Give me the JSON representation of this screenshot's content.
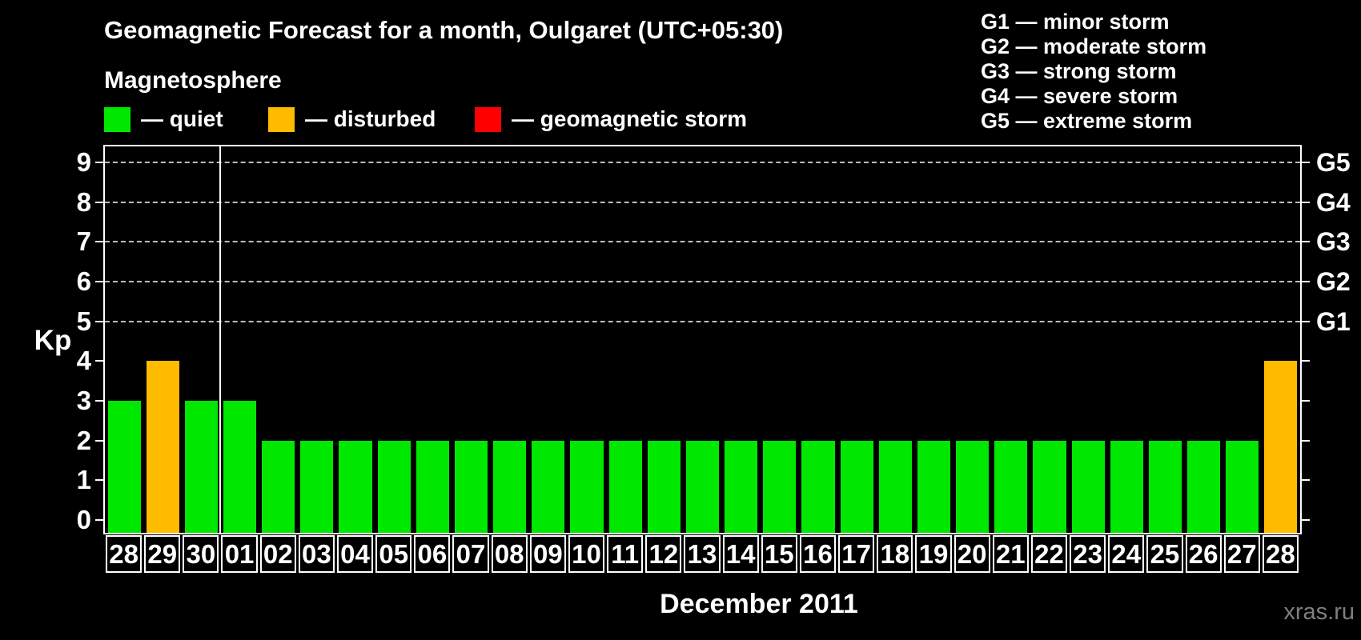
{
  "title": "Geomagnetic Forecast for a month, Oulgaret (UTC+05:30)",
  "subtitle": "Magnetosphere",
  "watermark": "xras.ru",
  "legend": [
    {
      "key": "quiet",
      "label": "— quiet",
      "color": "#00E800"
    },
    {
      "key": "disturbed",
      "label": "— disturbed",
      "color": "#FFBB00"
    },
    {
      "key": "storm",
      "label": "— geomagnetic storm",
      "color": "#FF0000"
    }
  ],
  "g_legend": [
    "G1 — minor storm",
    "G2 — moderate storm",
    "G3 — strong storm",
    "G4 — severe storm",
    "G5 — extreme storm"
  ],
  "chart_data": {
    "type": "bar",
    "title": "Geomagnetic Forecast for a month, Oulgaret (UTC+05:30)",
    "xlabel": "December 2011",
    "ylabel": "Kp",
    "ylim": [
      0,
      9
    ],
    "yticks": [
      0,
      1,
      2,
      3,
      4,
      5,
      6,
      7,
      8,
      9
    ],
    "gridlines_at": [
      5,
      6,
      7,
      8,
      9
    ],
    "grid_style": "dashed horizontal",
    "legend_position": "top-left",
    "right_axis": [
      {
        "kp": 5,
        "label": "G1"
      },
      {
        "kp": 6,
        "label": "G2"
      },
      {
        "kp": 7,
        "label": "G3"
      },
      {
        "kp": 8,
        "label": "G4"
      },
      {
        "kp": 9,
        "label": "G5"
      }
    ],
    "categories": [
      "28",
      "29",
      "30",
      "01",
      "02",
      "03",
      "04",
      "05",
      "06",
      "07",
      "08",
      "09",
      "10",
      "11",
      "12",
      "13",
      "14",
      "15",
      "16",
      "17",
      "18",
      "19",
      "20",
      "21",
      "22",
      "23",
      "24",
      "25",
      "26",
      "27",
      "28"
    ],
    "values": [
      3,
      4,
      3,
      3,
      2,
      2,
      2,
      2,
      2,
      2,
      2,
      2,
      2,
      2,
      2,
      2,
      2,
      2,
      2,
      2,
      2,
      2,
      2,
      2,
      2,
      2,
      2,
      2,
      2,
      2,
      4
    ],
    "states": [
      "quiet",
      "disturbed",
      "quiet",
      "quiet",
      "quiet",
      "quiet",
      "quiet",
      "quiet",
      "quiet",
      "quiet",
      "quiet",
      "quiet",
      "quiet",
      "quiet",
      "quiet",
      "quiet",
      "quiet",
      "quiet",
      "quiet",
      "quiet",
      "quiet",
      "quiet",
      "quiet",
      "quiet",
      "quiet",
      "quiet",
      "quiet",
      "quiet",
      "quiet",
      "quiet",
      "disturbed"
    ],
    "month_separator_after_index": 2,
    "colors": {
      "quiet": "#00E800",
      "disturbed": "#FFBB00",
      "storm": "#FF0000"
    }
  }
}
